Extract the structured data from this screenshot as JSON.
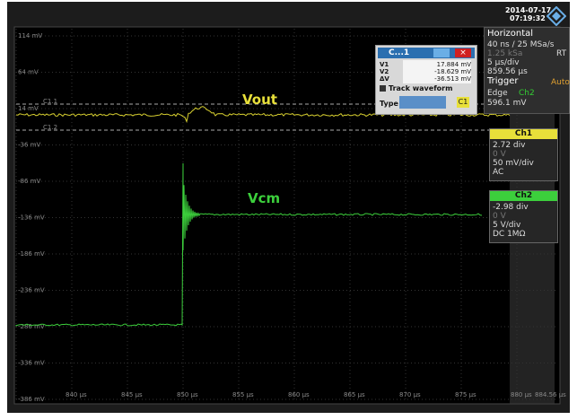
{
  "header": {
    "date": "2014-07-17",
    "time": "07:19:32"
  },
  "horizontal": {
    "title": "Horizontal",
    "resolution": "40 ns / 25 MSa/s",
    "mode": "RT",
    "record": "1.25 kSa",
    "timebase": "5 µs/div",
    "position": "859.56 µs"
  },
  "trigger": {
    "title": "Trigger",
    "mode": "Auto",
    "type": "Edge",
    "source": "Ch2",
    "level": "596.1 mV"
  },
  "channels": [
    {
      "name": "Ch1",
      "position": "2.72 div",
      "offset": "0 V",
      "scale": "50 mV/div",
      "coupling": "AC"
    },
    {
      "name": "Ch2",
      "position": "-2.98 div",
      "offset": "0 V",
      "scale": "5 V/div",
      "coupling": "DC 1MΩ"
    }
  ],
  "cursor_dialog": {
    "title": "C...1",
    "rows": [
      {
        "label": "V1",
        "value": "17.884 mV"
      },
      {
        "label": "V2",
        "value": "-18.629 mV"
      },
      {
        "label": "ΔV",
        "value": "-36.513 mV"
      }
    ],
    "track": "Track waveform",
    "type_label": "Type",
    "source": "C1"
  },
  "y_axis_labels": [
    "114 mV",
    "64 mV",
    "14 mV",
    "-36 mV",
    "-86 mV",
    "-136 mV",
    "-186 mV",
    "-236 mV",
    "-286 mV",
    "-336 mV",
    "-386 mV"
  ],
  "x_axis_labels": [
    "840 µs",
    "845 µs",
    "850 µs",
    "855 µs",
    "860 µs",
    "865 µs",
    "870 µs",
    "875 µs",
    "880 µs",
    "884.56 µs"
  ],
  "cursors": [
    "C1.1",
    "C1.2"
  ],
  "traces": [
    {
      "label": "Vout"
    },
    {
      "label": "Vcm"
    }
  ]
}
